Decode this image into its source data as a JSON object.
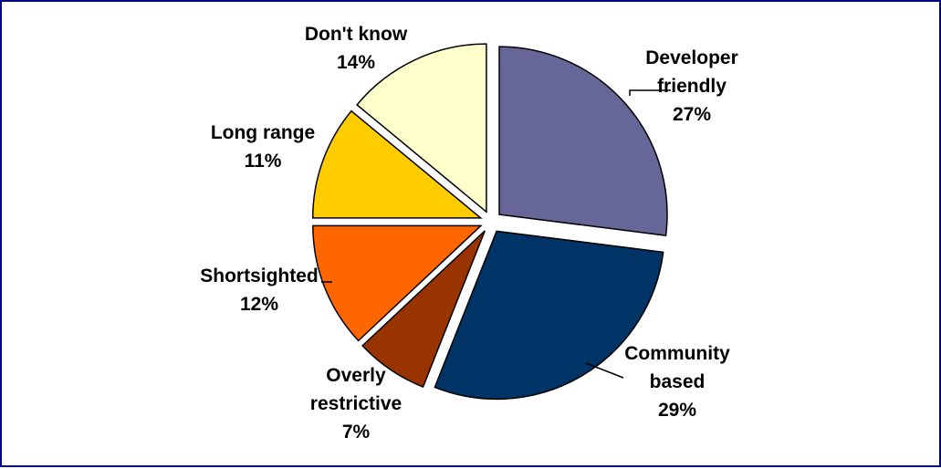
{
  "chart_data": {
    "type": "pie",
    "title": "",
    "slices": [
      {
        "label_lines": [
          "Developer",
          "friendly"
        ],
        "percent_label": "27%",
        "value": 27,
        "color": "#666699"
      },
      {
        "label_lines": [
          "Community",
          "based"
        ],
        "percent_label": "29%",
        "value": 29,
        "color": "#003366"
      },
      {
        "label_lines": [
          "Overly",
          "restrictive"
        ],
        "percent_label": "7%",
        "value": 7,
        "color": "#993300"
      },
      {
        "label_lines": [
          "Shortsighted"
        ],
        "percent_label": "12%",
        "value": 12,
        "color": "#FF6600"
      },
      {
        "label_lines": [
          "Long range"
        ],
        "percent_label": "11%",
        "value": 11,
        "color": "#FFCC00"
      },
      {
        "label_lines": [
          "Don't know"
        ],
        "percent_label": "14%",
        "value": 14,
        "color": "#FFFFCC"
      }
    ],
    "legend": "none",
    "exploded": true
  },
  "colors": {
    "frame_border": "#000080",
    "background": "#ffffff"
  }
}
